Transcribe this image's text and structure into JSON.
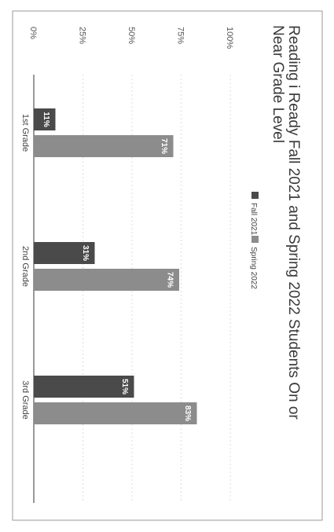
{
  "chart_data": {
    "type": "bar",
    "title_line1": "Reading i Ready Fall 2021 and Spring 2022 Students On or",
    "title_line2": "Near Grade Level",
    "categories": [
      "1st Grade",
      "2nd Grade",
      "3rd Grade"
    ],
    "series": [
      {
        "name": "Fall 2021",
        "values": [
          11,
          31,
          51
        ],
        "labels": [
          "11%",
          "31%",
          "51%"
        ],
        "color": "#4a4a4a"
      },
      {
        "name": "Spring 2022",
        "values": [
          71,
          74,
          83
        ],
        "labels": [
          "71%",
          "74%",
          "83%"
        ],
        "color": "#8c8c8c"
      }
    ],
    "ylim": [
      0,
      100
    ],
    "yticks": [
      0,
      25,
      50,
      75,
      100
    ],
    "ytick_labels": [
      "0%",
      "25%",
      "50%",
      "75%",
      "100%"
    ],
    "grid": true,
    "legend_position": "top-right",
    "orientation": "rotated-90-clockwise"
  }
}
